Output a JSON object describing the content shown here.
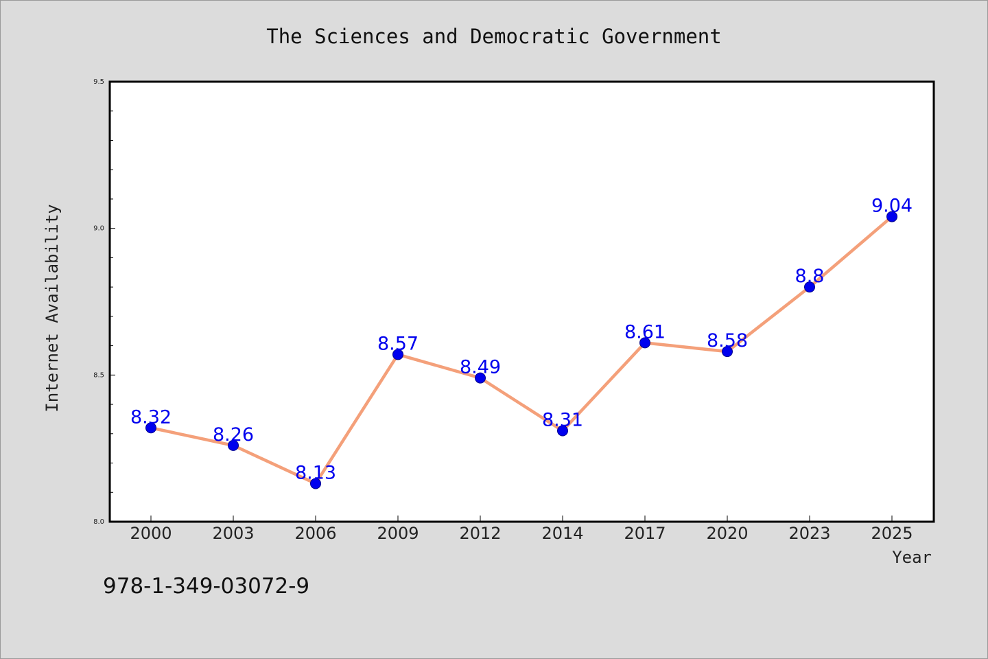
{
  "chart_data": {
    "type": "line",
    "title": "The Sciences and Democratic Government",
    "xlabel": "Year",
    "ylabel": "Internet Availability",
    "categories": [
      "2000",
      "2003",
      "2006",
      "2009",
      "2012",
      "2014",
      "2017",
      "2020",
      "2023",
      "2025"
    ],
    "series": [
      {
        "values": [
          8.32,
          8.26,
          8.13,
          8.57,
          8.49,
          8.31,
          8.61,
          8.58,
          8.8,
          9.04
        ],
        "data_labels": [
          "8.32",
          "8.26",
          "8.13",
          "8.57",
          "8.49",
          "8.31",
          "8.61",
          "8.58",
          "8.8",
          "9.04"
        ]
      }
    ],
    "ylim": [
      8.0,
      9.5
    ],
    "yticks": [
      "8.0",
      "8.5",
      "9.0",
      "9.5"
    ],
    "grid": false,
    "colors": {
      "line": "#f4a07a",
      "marker": "#0000ee",
      "data_label": "#0000ee",
      "plot_background": "#ffffff",
      "figure_background": "#dcdcdc"
    }
  },
  "footer": {
    "isbn": "978-1-349-03072-9"
  }
}
